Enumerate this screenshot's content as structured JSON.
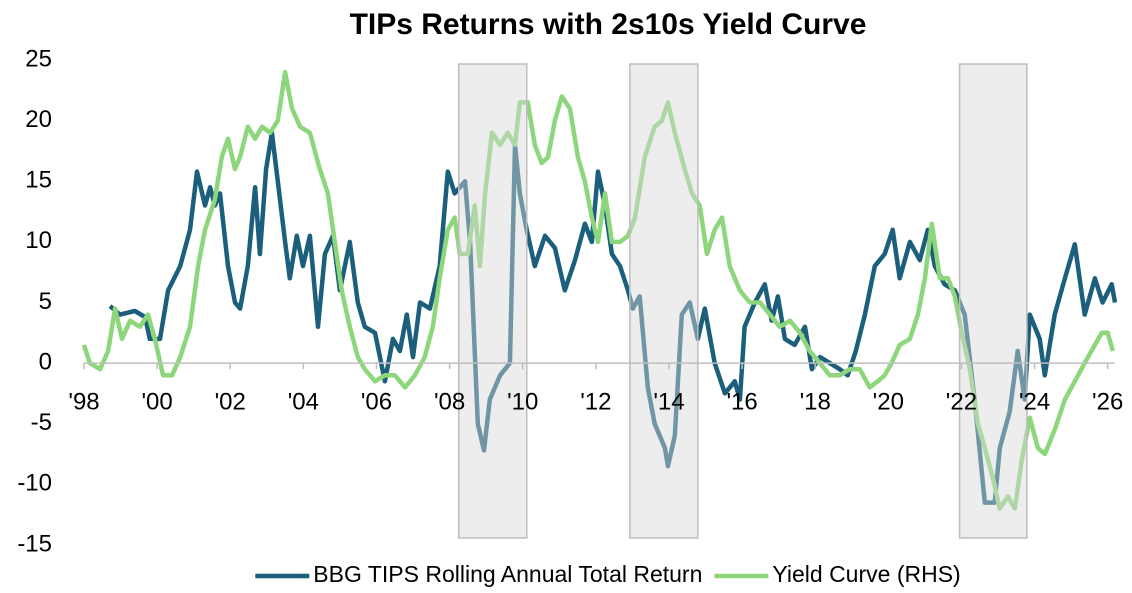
{
  "chart_data": {
    "type": "line",
    "title": "TIPs Returns with 2s10s Yield Curve",
    "xlim": [
      1998,
      2026.2
    ],
    "xticks": [
      {
        "value": 1998,
        "label": "'98"
      },
      {
        "value": 2000,
        "label": "'00"
      },
      {
        "value": 2002,
        "label": "'02"
      },
      {
        "value": 2004,
        "label": "'04"
      },
      {
        "value": 2006,
        "label": "'06"
      },
      {
        "value": 2008,
        "label": "'08"
      },
      {
        "value": 2010,
        "label": "'10"
      },
      {
        "value": 2012,
        "label": "'12"
      },
      {
        "value": 2014,
        "label": "'14"
      },
      {
        "value": 2016,
        "label": "'16"
      },
      {
        "value": 2018,
        "label": "'18"
      },
      {
        "value": 2020,
        "label": "'20"
      },
      {
        "value": 2022,
        "label": "'22"
      },
      {
        "value": 2024,
        "label": "'24"
      },
      {
        "value": 2026,
        "label": "'26"
      }
    ],
    "ylim": [
      -15,
      25
    ],
    "yticks": [
      -15,
      -10,
      -5,
      0,
      5,
      10,
      15,
      20,
      25
    ],
    "grid": false,
    "legend": "bottom",
    "shaded_periods": [
      [
        2008.25,
        2010.11
      ],
      [
        2012.93,
        2014.79
      ],
      [
        2021.95,
        2023.79
      ]
    ],
    "series": [
      {
        "name": "BBG TIPS Rolling Annual Total Return",
        "color": "#1c5f7c",
        "x": [
          1998.71,
          1998.98,
          1999.39,
          1999.67,
          1999.8,
          2000.08,
          2000.3,
          2000.63,
          2000.9,
          2001.09,
          2001.31,
          2001.45,
          2001.58,
          2001.72,
          2001.94,
          2002.13,
          2002.27,
          2002.48,
          2002.68,
          2002.81,
          2002.98,
          2003.14,
          2003.3,
          2003.5,
          2003.63,
          2003.82,
          2003.99,
          2004.18,
          2004.4,
          2004.59,
          2004.81,
          2005.0,
          2005.27,
          2005.49,
          2005.68,
          2005.96,
          2006.23,
          2006.45,
          2006.64,
          2006.83,
          2007.0,
          2007.19,
          2007.46,
          2007.73,
          2007.95,
          2008.14,
          2008.42,
          2008.56,
          2008.77,
          2008.94,
          2009.1,
          2009.38,
          2009.65,
          2009.79,
          2009.92,
          2010.11,
          2010.33,
          2010.61,
          2010.88,
          2011.15,
          2011.43,
          2011.7,
          2011.89,
          2012.06,
          2012.25,
          2012.44,
          2012.66,
          2012.88,
          2013.01,
          2013.2,
          2013.42,
          2013.61,
          2013.89,
          2013.97,
          2014.16,
          2014.35,
          2014.57,
          2014.79,
          2014.98,
          2015.25,
          2015.53,
          2015.8,
          2015.94,
          2016.07,
          2016.35,
          2016.62,
          2016.81,
          2016.98,
          2017.17,
          2017.44,
          2017.72,
          2017.91,
          2018.13,
          2018.4,
          2018.67,
          2018.89,
          2019.11,
          2019.36,
          2019.63,
          2019.9,
          2020.12,
          2020.31,
          2020.59,
          2020.86,
          2021.08,
          2021.27,
          2021.54,
          2021.82,
          2022.09,
          2022.36,
          2022.64,
          2022.91,
          2023.05,
          2023.32,
          2023.54,
          2023.73,
          2023.87,
          2024.14,
          2024.28,
          2024.55,
          2024.83,
          2025.1,
          2025.37,
          2025.65,
          2025.86,
          2026.11,
          2026.2
        ],
        "values": [
          4.7,
          4.0,
          4.3,
          3.8,
          2,
          2,
          6,
          8,
          11,
          15.8,
          13,
          14.5,
          13,
          14,
          8,
          5,
          4.5,
          8,
          14.5,
          9,
          16,
          19,
          15,
          10,
          7,
          10.5,
          8,
          10.5,
          3,
          9,
          10.5,
          6,
          10,
          5,
          3,
          2.5,
          -1.5,
          2,
          1,
          4,
          0.5,
          5,
          4.5,
          8,
          15.8,
          14,
          15,
          10,
          -5,
          -7.2,
          -3,
          -1,
          0,
          18,
          14,
          11,
          8,
          10.5,
          9.5,
          6,
          8.5,
          11.5,
          10,
          15.8,
          13,
          9,
          8,
          6,
          4.5,
          5.5,
          -2,
          -5,
          -7,
          -8.5,
          -6,
          4,
          5,
          2,
          4.5,
          0,
          -2.5,
          -1.5,
          -3,
          3,
          5,
          6.5,
          3.5,
          5.5,
          2,
          1.5,
          3,
          -0.5,
          0.5,
          0,
          -0.5,
          -1,
          1,
          4,
          8,
          9,
          11,
          7,
          10,
          8.5,
          11,
          8,
          6.5,
          6,
          4,
          -3,
          -11.5,
          -11.5,
          -7,
          -4,
          1,
          -3,
          4,
          2,
          -1,
          4,
          7,
          9.8,
          4,
          7,
          5,
          6.5,
          5
        ]
      },
      {
        "name": "Yield Curve (RHS)",
        "color": "#8ed67c",
        "x": [
          1998.0,
          1998.16,
          1998.44,
          1998.66,
          1998.85,
          1999.04,
          1999.26,
          1999.53,
          1999.75,
          1999.94,
          2000.16,
          2000.41,
          2000.63,
          2000.9,
          2001.12,
          2001.31,
          2001.58,
          2001.77,
          2001.94,
          2002.13,
          2002.27,
          2002.48,
          2002.68,
          2002.87,
          2003.09,
          2003.3,
          2003.5,
          2003.69,
          2003.91,
          2004.18,
          2004.45,
          2004.67,
          2004.86,
          2005.05,
          2005.27,
          2005.49,
          2005.68,
          2005.96,
          2006.23,
          2006.5,
          2006.78,
          2007.05,
          2007.32,
          2007.54,
          2007.73,
          2007.95,
          2008.14,
          2008.28,
          2008.5,
          2008.69,
          2008.83,
          2008.97,
          2009.16,
          2009.38,
          2009.59,
          2009.79,
          2009.92,
          2010.14,
          2010.33,
          2010.52,
          2010.69,
          2010.88,
          2011.07,
          2011.29,
          2011.51,
          2011.7,
          2011.89,
          2012.06,
          2012.25,
          2012.44,
          2012.66,
          2012.88,
          2013.07,
          2013.34,
          2013.61,
          2013.81,
          2013.97,
          2014.16,
          2014.43,
          2014.63,
          2014.84,
          2015.04,
          2015.25,
          2015.45,
          2015.66,
          2015.94,
          2016.21,
          2016.49,
          2016.76,
          2017.03,
          2017.31,
          2017.58,
          2017.85,
          2018.13,
          2018.4,
          2018.67,
          2018.95,
          2019.22,
          2019.49,
          2019.71,
          2019.9,
          2020.09,
          2020.31,
          2020.59,
          2020.81,
          2021.0,
          2021.19,
          2021.41,
          2021.63,
          2021.82,
          2022.01,
          2022.23,
          2022.45,
          2022.64,
          2022.86,
          2023.05,
          2023.27,
          2023.46,
          2023.65,
          2023.87,
          2024.09,
          2024.28,
          2024.55,
          2024.83,
          2025.1,
          2025.37,
          2025.65,
          2025.84,
          2026.0,
          2026.14
        ],
        "values": [
          1.5,
          0,
          -0.5,
          1,
          4.5,
          2,
          3.5,
          3,
          4,
          2,
          -1,
          -1,
          0.5,
          3,
          8,
          11,
          13.5,
          17,
          18.5,
          16,
          17,
          19.5,
          18.5,
          19.5,
          19,
          20,
          24,
          21,
          19.5,
          19,
          16,
          14,
          10,
          6,
          3,
          0.5,
          -0.5,
          -1.5,
          -1,
          -1,
          -2,
          -1,
          0.5,
          3,
          7,
          11,
          12,
          9,
          9,
          13,
          8,
          14,
          19,
          18,
          19,
          18,
          21.5,
          21.5,
          18,
          16.5,
          17,
          20,
          22,
          21,
          17,
          15,
          12,
          10,
          14,
          10,
          10,
          10.5,
          12,
          17,
          19.5,
          20,
          21.5,
          19,
          16,
          14,
          13,
          9,
          11,
          12,
          8,
          6,
          5,
          5,
          4,
          3,
          3.5,
          2.5,
          1,
          0,
          -1,
          -1,
          -0.5,
          -0.5,
          -2,
          -1.5,
          -1,
          0,
          1.5,
          2,
          4,
          7,
          11.5,
          7,
          7,
          5.5,
          2.5,
          -0.5,
          -5,
          -7,
          -9.5,
          -12,
          -11,
          -12,
          -8,
          -4.5,
          -7,
          -7.5,
          -5.5,
          -3,
          -1.5,
          0,
          1.5,
          2.5,
          2.5,
          1
        ]
      }
    ]
  }
}
